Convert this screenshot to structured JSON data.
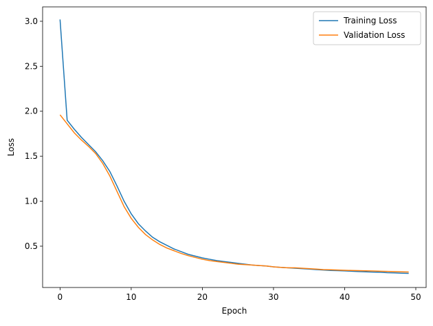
{
  "chart_data": {
    "type": "line",
    "xlabel": "Epoch",
    "ylabel": "Loss",
    "x": [
      0,
      1,
      2,
      3,
      4,
      5,
      6,
      7,
      8,
      9,
      10,
      11,
      12,
      13,
      14,
      15,
      16,
      17,
      18,
      19,
      20,
      21,
      22,
      23,
      24,
      25,
      26,
      27,
      28,
      29,
      30,
      31,
      32,
      33,
      34,
      35,
      36,
      37,
      38,
      39,
      40,
      41,
      42,
      43,
      44,
      45,
      46,
      47,
      48,
      49
    ],
    "series": [
      {
        "name": "Training Loss",
        "color": "#1f77b4",
        "values": [
          3.02,
          1.9,
          1.8,
          1.71,
          1.63,
          1.55,
          1.45,
          1.33,
          1.17,
          1.0,
          0.86,
          0.75,
          0.67,
          0.6,
          0.55,
          0.51,
          0.47,
          0.44,
          0.41,
          0.39,
          0.37,
          0.355,
          0.34,
          0.33,
          0.32,
          0.31,
          0.3,
          0.29,
          0.285,
          0.28,
          0.27,
          0.265,
          0.26,
          0.255,
          0.25,
          0.245,
          0.24,
          0.235,
          0.23,
          0.228,
          0.225,
          0.222,
          0.218,
          0.215,
          0.212,
          0.21,
          0.205,
          0.203,
          0.2,
          0.198
        ]
      },
      {
        "name": "Validation Loss",
        "color": "#ff7f0e",
        "values": [
          1.96,
          1.86,
          1.76,
          1.68,
          1.61,
          1.53,
          1.42,
          1.28,
          1.11,
          0.94,
          0.81,
          0.71,
          0.63,
          0.57,
          0.52,
          0.48,
          0.45,
          0.42,
          0.395,
          0.375,
          0.355,
          0.34,
          0.33,
          0.32,
          0.31,
          0.3,
          0.295,
          0.29,
          0.285,
          0.28,
          0.27,
          0.265,
          0.26,
          0.26,
          0.255,
          0.25,
          0.245,
          0.24,
          0.238,
          0.235,
          0.232,
          0.23,
          0.228,
          0.226,
          0.224,
          0.222,
          0.22,
          0.218,
          0.215,
          0.213
        ]
      }
    ],
    "xlim": [
      -2.45,
      51.45
    ],
    "xticks": [
      0,
      10,
      20,
      30,
      40,
      50
    ],
    "ylim": [
      0.041,
      3.16
    ],
    "yticks": [
      0.5,
      {
        "value": 1.0,
        "label": "1.0"
      },
      1.5,
      {
        "value": 2.0,
        "label": "2.0"
      },
      2.5,
      {
        "value": 3.0,
        "label": "3.0"
      }
    ],
    "legend": "upper right"
  }
}
